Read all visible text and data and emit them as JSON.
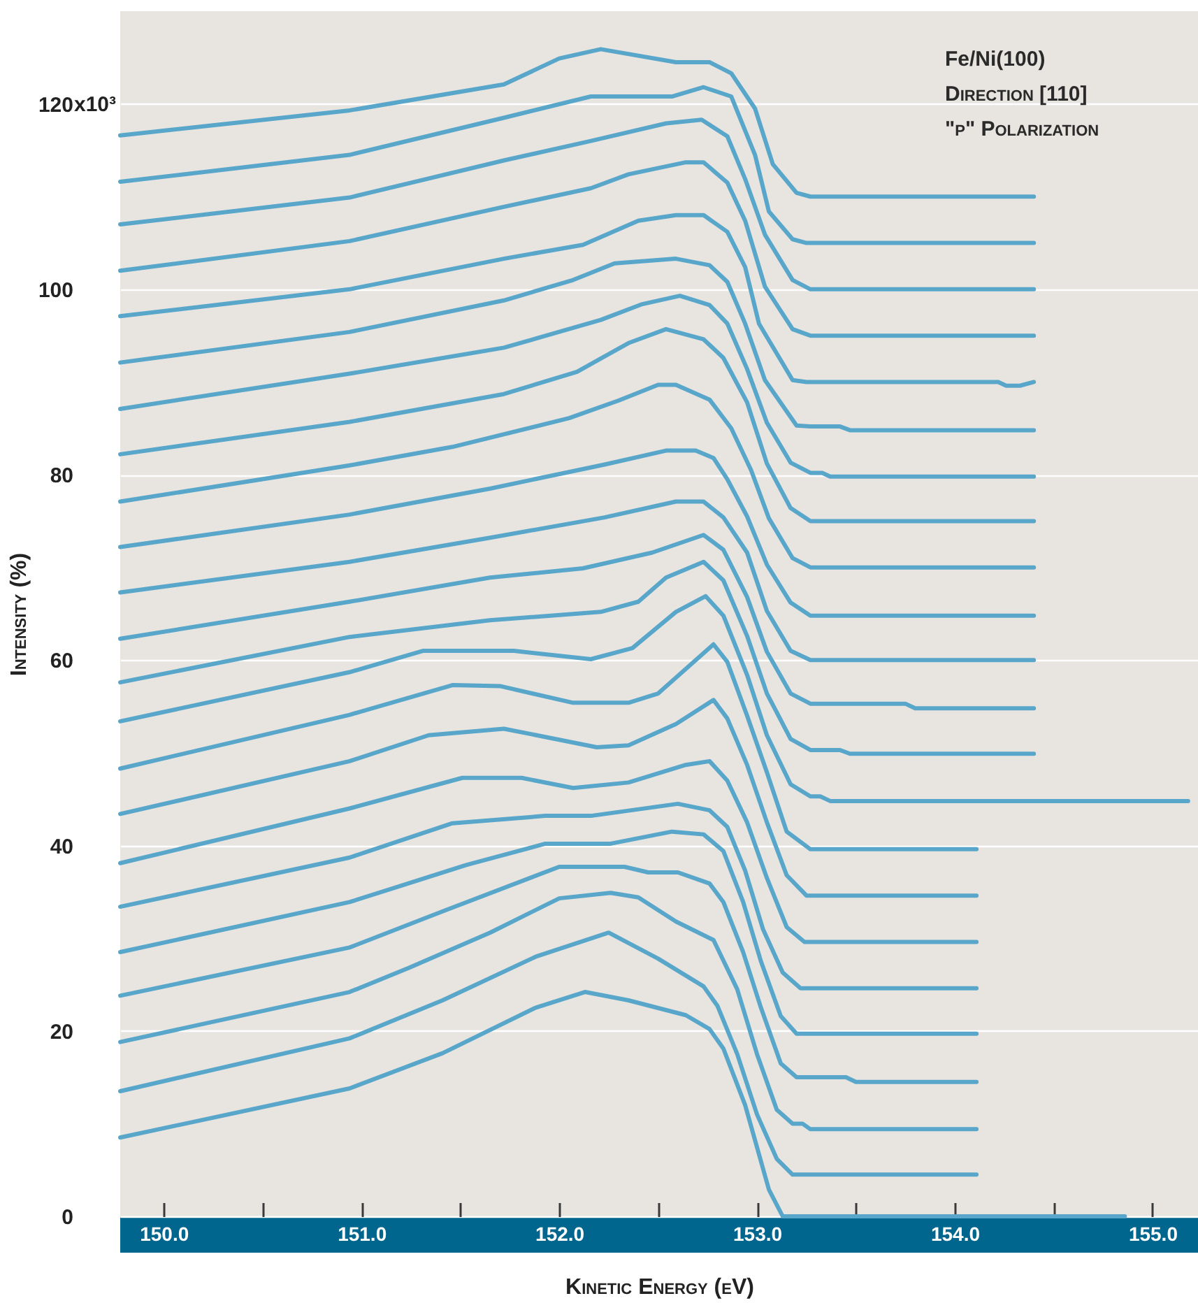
{
  "chart_data": {
    "type": "line",
    "xlabel": "Kinetic Energy (eV)",
    "ylabel": "Intensity (%)",
    "annotations": [
      "Fe/Ni(100)",
      "Direction [110]",
      "\"p\" Polarization",
      "x10³"
    ],
    "xlim": [
      149.78,
      155.23
    ],
    "ylim": [
      0,
      130
    ],
    "xticks": [
      {
        "value": 150,
        "label": "150.0"
      },
      {
        "value": 150.5,
        "label": null
      },
      {
        "value": 151,
        "label": "151.0"
      },
      {
        "value": 151.5,
        "label": null
      },
      {
        "value": 152,
        "label": "152.0"
      },
      {
        "value": 152.5,
        "label": null
      },
      {
        "value": 153,
        "label": "153.0"
      },
      {
        "value": 153.5,
        "label": null
      },
      {
        "value": 154,
        "label": "154.0"
      },
      {
        "value": 154.5,
        "label": null
      },
      {
        "value": 155,
        "label": "155.0"
      }
    ],
    "yticks": [
      0,
      20,
      40,
      60,
      80,
      100,
      120
    ],
    "grid": "y",
    "marker": "none",
    "line_style": "solid",
    "series": [
      {
        "color": "#58a6c9",
        "x": [
          149.78,
          150.94,
          151.72,
          152.0,
          152.21,
          152.59,
          152.76,
          152.87,
          152.99,
          153.08,
          153.2,
          153.27,
          154.4
        ],
        "values": [
          116.6,
          119.3,
          122.1,
          124.9,
          125.9,
          124.5,
          124.5,
          123.3,
          119.5,
          113.5,
          110.4,
          110,
          110
        ]
      },
      {
        "color": "#58a6c9",
        "x": [
          149.78,
          150.94,
          151.72,
          152.16,
          152.57,
          152.73,
          152.87,
          152.99,
          153.06,
          153.18,
          153.25,
          154.4
        ],
        "values": [
          111.6,
          114.5,
          118.5,
          120.8,
          120.8,
          121.8,
          120.8,
          114.5,
          108.4,
          105.4,
          105,
          105
        ]
      },
      {
        "color": "#58a6c9",
        "x": [
          149.78,
          150.94,
          151.72,
          152.16,
          152.54,
          152.72,
          152.85,
          152.94,
          153.04,
          153.18,
          153.27,
          154.4
        ],
        "values": [
          107,
          109.9,
          113.9,
          116,
          117.9,
          118.3,
          116.5,
          111.9,
          105.9,
          101,
          100,
          100
        ]
      },
      {
        "color": "#58a6c9",
        "x": [
          149.78,
          150.94,
          151.72,
          152.16,
          152.35,
          152.64,
          152.73,
          152.85,
          152.94,
          153.04,
          153.18,
          153.27,
          154.4
        ],
        "values": [
          102,
          105.2,
          108.9,
          110.9,
          112.4,
          113.7,
          113.7,
          111.5,
          107.4,
          100.3,
          95.7,
          95,
          95
        ]
      },
      {
        "color": "#58a6c9",
        "x": [
          149.78,
          150.94,
          151.72,
          152.12,
          152.4,
          152.59,
          152.73,
          152.85,
          152.94,
          153.01,
          153.18,
          153.25,
          154.22,
          154.26,
          154.33,
          154.4
        ],
        "values": [
          97.1,
          100,
          103.3,
          104.8,
          107.4,
          108,
          108,
          106.2,
          102.4,
          96.3,
          90.2,
          90,
          90,
          89.6,
          89.6,
          90
        ]
      },
      {
        "color": "#58a6c9",
        "x": [
          149.78,
          150.94,
          151.72,
          152.07,
          152.28,
          152.59,
          152.76,
          152.85,
          152.94,
          153.04,
          153.2,
          153.27,
          153.42,
          153.47,
          154.4
        ],
        "values": [
          92.1,
          95.4,
          98.8,
          101,
          102.8,
          103.3,
          102.6,
          100.8,
          96.3,
          90.2,
          85.3,
          85.2,
          85.2,
          84.8,
          84.8
        ]
      },
      {
        "color": "#58a6c9",
        "x": [
          149.78,
          150.94,
          151.72,
          152.21,
          152.42,
          152.61,
          152.76,
          152.85,
          152.95,
          153.05,
          153.17,
          153.27,
          153.33,
          153.37,
          154.4
        ],
        "values": [
          87.1,
          90.9,
          93.7,
          96.7,
          98.4,
          99.3,
          98.3,
          96.3,
          91.4,
          85.6,
          81.3,
          80.2,
          80.2,
          79.8,
          79.8
        ]
      },
      {
        "color": "#58a6c9",
        "x": [
          149.78,
          150.94,
          151.72,
          152.09,
          152.35,
          152.54,
          152.73,
          152.83,
          152.95,
          153.05,
          153.17,
          153.27,
          154.4
        ],
        "values": [
          82.2,
          85.7,
          88.7,
          91.1,
          94.2,
          95.7,
          94.6,
          92.6,
          87.8,
          81.2,
          76.4,
          75,
          75
        ]
      },
      {
        "color": "#58a6c9",
        "x": [
          149.78,
          150.94,
          151.46,
          152.05,
          152.3,
          152.5,
          152.59,
          152.76,
          152.87,
          152.97,
          153.06,
          153.18,
          153.27,
          154.4
        ],
        "values": [
          77.1,
          81,
          83,
          86.1,
          88,
          89.7,
          89.7,
          88.1,
          85,
          80.5,
          75.3,
          71,
          70,
          70
        ]
      },
      {
        "color": "#58a6c9",
        "x": [
          149.78,
          150.94,
          151.65,
          152.23,
          152.54,
          152.69,
          152.78,
          152.85,
          152.95,
          153.05,
          153.17,
          153.27,
          154.4
        ],
        "values": [
          72.2,
          75.7,
          78.5,
          81.1,
          82.6,
          82.6,
          81.8,
          79.5,
          75.5,
          70.3,
          66.2,
          64.8,
          64.8
        ]
      },
      {
        "color": "#58a6c9",
        "x": [
          149.78,
          150.94,
          151.65,
          152.23,
          152.59,
          152.73,
          152.83,
          152.95,
          153.05,
          153.17,
          153.27,
          154.4
        ],
        "values": [
          67.3,
          70.6,
          73.2,
          75.4,
          77.1,
          77.1,
          75.4,
          71.6,
          65.3,
          61,
          60,
          60
        ]
      },
      {
        "color": "#58a6c9",
        "x": [
          149.78,
          150.94,
          151.65,
          152.12,
          152.47,
          152.73,
          152.83,
          152.95,
          153.05,
          153.17,
          153.27,
          153.75,
          153.8,
          154.4
        ],
        "values": [
          62.3,
          66.3,
          68.9,
          69.9,
          71.6,
          73.5,
          71.9,
          66.8,
          60.9,
          56.4,
          55.3,
          55.3,
          54.8,
          54.8
        ]
      },
      {
        "color": "#58a6c9",
        "x": [
          149.78,
          150.94,
          151.65,
          152.21,
          152.4,
          152.54,
          152.73,
          152.83,
          152.95,
          153.05,
          153.17,
          153.27,
          153.42,
          153.47,
          154.4
        ],
        "values": [
          57.6,
          62.5,
          64.3,
          65.2,
          66.3,
          68.9,
          70.6,
          68.6,
          62.6,
          56.4,
          51.5,
          50.3,
          50.3,
          49.9,
          49.9
        ]
      },
      {
        "color": "#58a6c9",
        "x": [
          149.78,
          150.94,
          151.31,
          151.77,
          152.16,
          152.37,
          152.59,
          152.74,
          152.83,
          152.95,
          153.05,
          153.17,
          153.27,
          153.32,
          153.37,
          155.18
        ],
        "values": [
          53.4,
          58.7,
          61,
          61,
          60.1,
          61.3,
          65.2,
          66.9,
          64.8,
          58.4,
          51.9,
          46.6,
          45.3,
          45.3,
          44.8,
          44.8
        ]
      },
      {
        "color": "#58a6c9",
        "x": [
          149.78,
          150.94,
          151.46,
          151.7,
          152.07,
          152.35,
          152.5,
          152.78,
          152.85,
          152.95,
          153.05,
          153.15,
          153.27,
          154.11
        ],
        "values": [
          48.3,
          54.1,
          57.3,
          57.2,
          55.4,
          55.4,
          56.4,
          61.7,
          59.8,
          54,
          47.9,
          41.5,
          39.6,
          39.6
        ]
      },
      {
        "color": "#58a6c9",
        "x": [
          149.78,
          150.94,
          151.34,
          151.72,
          152.19,
          152.35,
          152.59,
          152.78,
          152.85,
          152.95,
          153.05,
          153.15,
          153.25,
          154.11
        ],
        "values": [
          43.4,
          49.1,
          51.9,
          52.6,
          50.6,
          50.8,
          53.1,
          55.7,
          53.7,
          48.7,
          42.5,
          36.8,
          34.6,
          34.6
        ]
      },
      {
        "color": "#58a6c9",
        "x": [
          149.78,
          150.94,
          151.51,
          151.81,
          152.07,
          152.35,
          152.64,
          152.76,
          152.85,
          152.95,
          153.05,
          153.15,
          153.24,
          154.11
        ],
        "values": [
          38.1,
          44,
          47.3,
          47.3,
          46.2,
          46.8,
          48.7,
          49.1,
          47,
          42.5,
          36.5,
          31.2,
          29.6,
          29.6
        ]
      },
      {
        "color": "#58a6c9",
        "x": [
          149.78,
          150.94,
          151.46,
          151.93,
          152.16,
          152.6,
          152.76,
          152.85,
          152.94,
          153.03,
          153.13,
          153.22,
          154.11
        ],
        "values": [
          33.4,
          38.7,
          42.4,
          43.2,
          43.2,
          44.5,
          43.8,
          42,
          37.3,
          31,
          26.3,
          24.6,
          24.6
        ]
      },
      {
        "color": "#58a6c9",
        "x": [
          149.78,
          150.94,
          151.53,
          151.93,
          152.26,
          152.57,
          152.73,
          152.83,
          152.93,
          153.02,
          153.12,
          153.2,
          154.11
        ],
        "values": [
          28.5,
          33.9,
          37.9,
          40.2,
          40.2,
          41.5,
          41.2,
          39.4,
          33.9,
          27.5,
          21.6,
          19.7,
          19.7
        ]
      },
      {
        "color": "#58a6c9",
        "x": [
          149.78,
          150.94,
          151.41,
          152.0,
          152.33,
          152.45,
          152.6,
          152.76,
          152.83,
          152.93,
          153.02,
          153.12,
          153.2,
          153.45,
          153.5,
          154.11
        ],
        "values": [
          23.8,
          29,
          32.9,
          37.7,
          37.7,
          37.1,
          37.1,
          35.9,
          33.9,
          28.5,
          22.5,
          16.5,
          15,
          15,
          14.5,
          14.5
        ]
      },
      {
        "color": "#58a6c9",
        "x": [
          149.78,
          150.94,
          151.24,
          151.65,
          152.0,
          152.26,
          152.4,
          152.59,
          152.78,
          152.9,
          153.0,
          153.1,
          153.18,
          153.23,
          153.27,
          154.11
        ],
        "values": [
          18.8,
          24.2,
          26.8,
          30.6,
          34.3,
          34.9,
          34.4,
          31.8,
          29.8,
          24.5,
          17.5,
          11.5,
          10,
          10,
          9.4,
          9.4
        ]
      },
      {
        "color": "#58a6c9",
        "x": [
          149.78,
          150.94,
          151.41,
          151.88,
          152.25,
          152.5,
          152.73,
          152.8,
          152.9,
          153.0,
          153.1,
          153.18,
          154.11
        ],
        "values": [
          13.5,
          19.2,
          23.3,
          28,
          30.6,
          27.8,
          24.8,
          22.7,
          17.5,
          11,
          6.2,
          4.5,
          4.5
        ]
      },
      {
        "color": "#58a6c9",
        "x": [
          149.78,
          150.94,
          151.41,
          151.88,
          152.13,
          152.35,
          152.64,
          152.76,
          152.83,
          152.94,
          153.06,
          153.13,
          154.86
        ],
        "values": [
          8.5,
          13.8,
          17.6,
          22.5,
          24.2,
          23.3,
          21.7,
          20.2,
          18.1,
          12,
          2.9,
          0,
          0
        ]
      }
    ]
  }
}
